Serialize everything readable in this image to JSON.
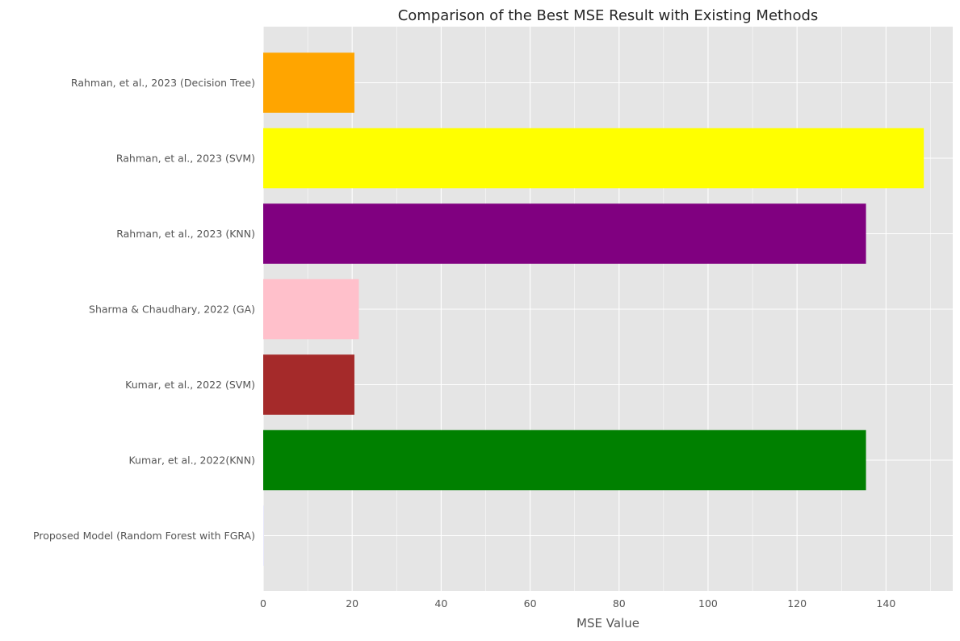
{
  "chart_data": {
    "type": "bar",
    "orientation": "horizontal",
    "title": "Comparison of the Best MSE Result with Existing Methods",
    "xlabel": "MSE Value",
    "ylabel": "",
    "xlim": [
      0,
      155
    ],
    "xticks": [
      0,
      20,
      40,
      60,
      80,
      100,
      120,
      140
    ],
    "grid": true,
    "legend": "none",
    "categories": [
      "Proposed Model (Random Forest with FGRA)",
      "Kumar, et al., 2022(KNN)",
      "Kumar, et al., 2022 (SVM)",
      "Sharma & Chaudhary, 2022 (GA)",
      "Rahman, et al., 2023 (KNN)",
      "Rahman, et al., 2023 (SVM)",
      "Rahman, et al., 2023 (Decision Tree)"
    ],
    "values": [
      0.1,
      135.5,
      20.5,
      21.5,
      135.5,
      148.5,
      20.5
    ],
    "colors": [
      "#e6e6fa",
      "#008000",
      "#a52a2a",
      "#ffc0cb",
      "#800080",
      "#ffff00",
      "#ffa500"
    ],
    "background_color": "#e5e5e5",
    "grid_color": "#ffffff"
  }
}
